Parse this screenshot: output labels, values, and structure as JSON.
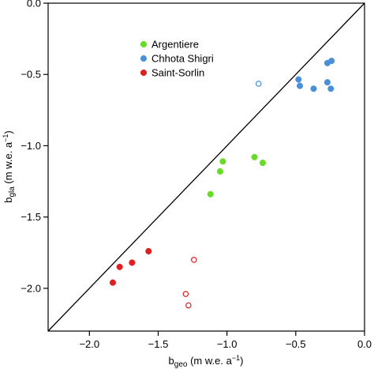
{
  "chart_data": {
    "type": "scatter",
    "xlim": [
      -2.3,
      0.0
    ],
    "ylim": [
      -2.3,
      0.0
    ],
    "x_ticks": [
      -2.0,
      -1.5,
      -1.0,
      -0.5,
      0.0
    ],
    "y_ticks": [
      -2.0,
      -1.5,
      -1.0,
      -0.5,
      0.0
    ],
    "x_tick_labels": [
      "−2.0",
      "−1.5",
      "−1.0",
      "−0.5",
      "0.0"
    ],
    "y_tick_labels": [
      "−2.0",
      "−1.5",
      "−1.0",
      "−0.5",
      "0.0"
    ],
    "xlabel": {
      "main": "b",
      "sub": "geo",
      "text": " (m w.e. a",
      "sup": "−1",
      "end": ")"
    },
    "ylabel": {
      "main": "b",
      "sub": "gla",
      "text": " (m w.e. a",
      "sup": "−1",
      "end": ")"
    },
    "reference_line": "1:1",
    "grid": false,
    "legend_position": "upper-left",
    "series": [
      {
        "name": "Argentiere",
        "color": "#66dd22",
        "points": [
          {
            "x": -1.12,
            "y": -1.34,
            "filled": true
          },
          {
            "x": -1.05,
            "y": -1.18,
            "filled": true
          },
          {
            "x": -1.03,
            "y": -1.11,
            "filled": true
          },
          {
            "x": -0.8,
            "y": -1.08,
            "filled": true
          },
          {
            "x": -0.74,
            "y": -1.12,
            "filled": true
          }
        ]
      },
      {
        "name": "Chhota Shigri",
        "color": "#4a90d9",
        "points": [
          {
            "x": -0.77,
            "y": -0.565,
            "filled": false
          },
          {
            "x": -0.48,
            "y": -0.535,
            "filled": true
          },
          {
            "x": -0.47,
            "y": -0.58,
            "filled": true
          },
          {
            "x": -0.37,
            "y": -0.6,
            "filled": true
          },
          {
            "x": -0.27,
            "y": -0.42,
            "filled": true
          },
          {
            "x": -0.27,
            "y": -0.555,
            "filled": true
          },
          {
            "x": -0.24,
            "y": -0.405,
            "filled": true
          },
          {
            "x": -0.245,
            "y": -0.6,
            "filled": true
          }
        ]
      },
      {
        "name": "Saint-Sorlin",
        "color": "#e02020",
        "points": [
          {
            "x": -1.83,
            "y": -1.96,
            "filled": true
          },
          {
            "x": -1.78,
            "y": -1.85,
            "filled": true
          },
          {
            "x": -1.69,
            "y": -1.82,
            "filled": true
          },
          {
            "x": -1.57,
            "y": -1.74,
            "filled": true
          },
          {
            "x": -1.24,
            "y": -1.8,
            "filled": false
          },
          {
            "x": -1.3,
            "y": -2.04,
            "filled": false
          },
          {
            "x": -1.28,
            "y": -2.12,
            "filled": false
          }
        ]
      }
    ]
  }
}
